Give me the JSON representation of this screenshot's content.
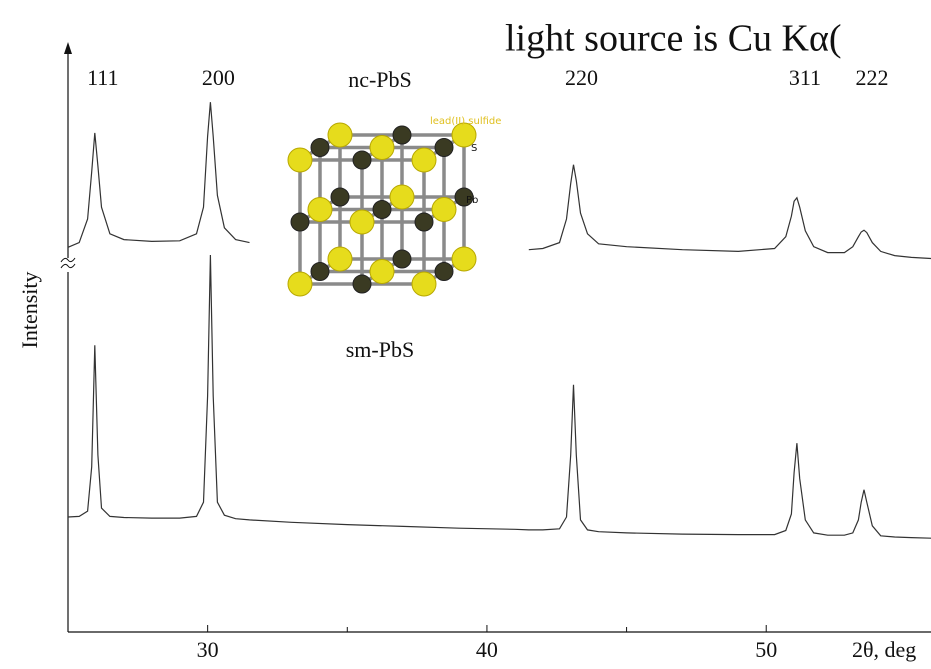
{
  "chart_data": {
    "type": "line",
    "title": "light source is Cu Kα(",
    "y_label": "Intensity",
    "x_label": "2θ, deg",
    "x": [
      25,
      25.4,
      25.7,
      25.85,
      25.96,
      26.07,
      26.2,
      26.5,
      27,
      28,
      29,
      29.6,
      29.85,
      30.0,
      30.1,
      30.2,
      30.35,
      30.6,
      31,
      31.5,
      33,
      35,
      37,
      39,
      41,
      41.5,
      42,
      42.6,
      42.85,
      43.0,
      43.1,
      43.2,
      43.35,
      43.6,
      44,
      45,
      47,
      49,
      50.3,
      50.7,
      50.9,
      51.0,
      51.1,
      51.2,
      51.4,
      51.7,
      52.2,
      52.8,
      53.1,
      53.3,
      53.4,
      53.5,
      53.6,
      53.8,
      54.1,
      54.6,
      55.2,
      55.9
    ],
    "series": [
      {
        "name": "nc-PbS",
        "color": "#333333",
        "values": [
          65.2,
          66,
          70,
          78,
          84.6,
          79,
          72,
          67.5,
          66.5,
          66.2,
          66.3,
          67.5,
          72,
          84,
          89.8,
          84,
          74,
          68.5,
          66.5,
          66,
          null,
          null,
          null,
          null,
          null,
          64.8,
          65,
          66,
          70,
          76,
          79.2,
          76.5,
          71,
          67.5,
          65.8,
          65.3,
          64.8,
          64.5,
          65,
          67,
          70.5,
          73,
          73.6,
          72,
          68,
          65.3,
          64.3,
          64.3,
          65.3,
          67,
          67.8,
          68.1,
          67.7,
          66,
          64.5,
          63.8,
          63.5,
          63.3
        ]
      },
      {
        "name": "sm-PbS",
        "color": "#333333",
        "values": [
          19.5,
          19.6,
          20.5,
          28,
          48.6,
          30,
          21,
          19.6,
          19.4,
          19.3,
          19.3,
          19.6,
          22,
          40,
          63.9,
          40,
          22,
          19.8,
          19.2,
          19,
          18.6,
          18.2,
          17.9,
          17.6,
          17.4,
          17.3,
          17.3,
          17.5,
          19.5,
          30,
          41.9,
          30,
          19,
          17.3,
          17,
          16.8,
          16.6,
          16.5,
          16.5,
          17.2,
          20,
          27,
          32,
          26,
          19,
          16.8,
          16.4,
          16.4,
          16.8,
          19,
          22,
          24.1,
          22,
          18,
          16.3,
          16.1,
          16,
          15.9
        ]
      }
    ],
    "peaks": [
      {
        "label": "111",
        "x": 25.96
      },
      {
        "label": "200",
        "x": 30.1
      },
      {
        "label": "220",
        "x": 43.1
      },
      {
        "label": "311",
        "x": 51.1
      },
      {
        "label": "222",
        "x": 53.5
      }
    ],
    "xlim": [
      25,
      55.9
    ],
    "xticks": [
      30,
      40,
      50
    ],
    "xminor_ticks": [
      35,
      45
    ],
    "ylim": [
      0,
      100
    ],
    "inset": {
      "title": "lead(II) sulfide",
      "labels": [
        "S",
        "Pb"
      ]
    }
  }
}
